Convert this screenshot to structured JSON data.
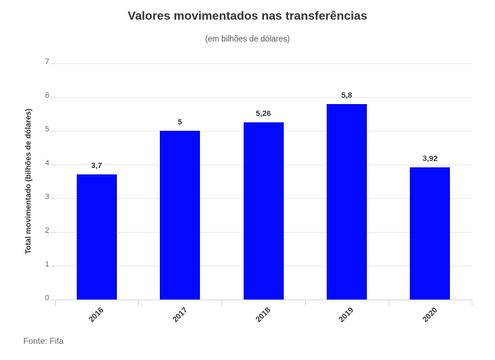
{
  "chart_data": {
    "type": "bar",
    "title": "Valores movimentados nas transferências",
    "subtitle": "(em bilhões de dólares)",
    "xlabel": "",
    "ylabel": "Total movimentado (bilhões de dólares)",
    "categories": [
      "2016",
      "2017",
      "2018",
      "2019",
      "2020"
    ],
    "values": [
      3.7,
      5,
      5.26,
      5.8,
      3.92
    ],
    "value_labels": [
      "3,7",
      "5",
      "5,26",
      "5,8",
      "3,92"
    ],
    "ylim": [
      0,
      7
    ],
    "ytick_step": 1,
    "yticks": [
      "0",
      "1",
      "2",
      "3",
      "4",
      "5",
      "6",
      "7"
    ],
    "grid": true,
    "legend": "none",
    "source": "Fonte: Fifa",
    "colors": {
      "bar": "#0309fa",
      "grid": "#e6e6e6",
      "axis": "#ccd6eb",
      "title": "#333333",
      "subtitle": "#555555",
      "axis_tick_label": "#666666",
      "category_label": "#333333",
      "data_label": "#333333",
      "source": "#666666"
    }
  }
}
